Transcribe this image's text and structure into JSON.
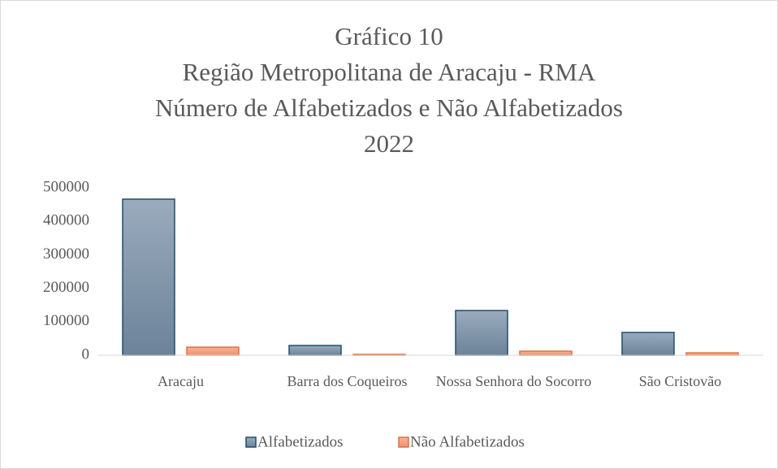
{
  "chart_data": {
    "type": "bar",
    "title": [
      "Gráfico 10",
      "Região Metropolitana de Aracaju - RMA",
      "Número de Alfabetizados e Não Alfabetizados",
      "2022"
    ],
    "categories": [
      "Aracaju",
      "Barra dos Coqueiros",
      "Nossa Senhora do Socorro",
      "São Cristovão"
    ],
    "series": [
      {
        "name": "Alfabetizados",
        "color": "#7f94a8",
        "values": [
          466000,
          29000,
          133500,
          68000
        ]
      },
      {
        "name": "Não Alfabetizados",
        "color": "#f2a083",
        "values": [
          24000,
          2500,
          12000,
          7000
        ]
      }
    ],
    "ylim": [
      0,
      500000
    ],
    "yticks": [
      0,
      100000,
      200000,
      300000,
      400000,
      500000
    ],
    "grid": false,
    "legend": "bottom"
  }
}
